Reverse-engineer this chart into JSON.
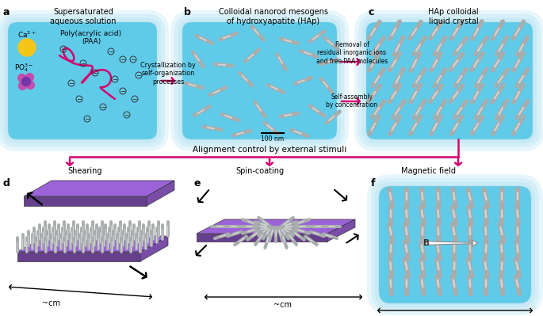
{
  "bg_color": "#ffffff",
  "panel_bg_inner": "#55c8e8",
  "panel_bg_outer": "#a0dcf0",
  "arrow_color": "#d4006e",
  "panel_labels": [
    "a",
    "b",
    "c",
    "d",
    "e",
    "f"
  ],
  "panel_titles": [
    "Supersaturated\naqueous solution",
    "Colloidal nanorod mesogens\nof hydroxyapatite (HAp)",
    "HAp colloidal\nliquid crystal",
    "Shearing",
    "Spin-coating",
    "Magnetic field"
  ],
  "purple_color": "#8855bb",
  "yellow_color": "#f5c518",
  "pink_color": "#cc3366",
  "rod_gray": "#a8acac",
  "rod_light": "#d8dcdc",
  "scale_bar_text": "100 nm",
  "cm_label": "~cm"
}
